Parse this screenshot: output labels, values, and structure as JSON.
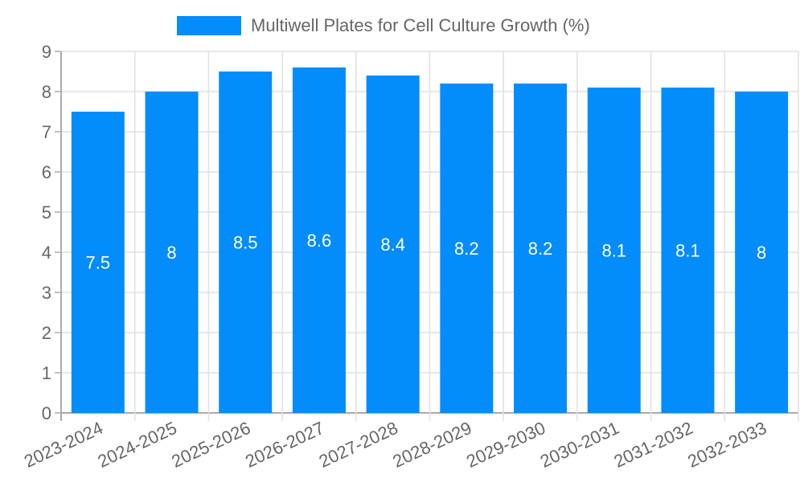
{
  "chart_data": {
    "type": "bar",
    "title": "",
    "legend": [
      {
        "label": "Multiwell Plates for Cell Culture Growth (%)",
        "color": "#038cfc"
      }
    ],
    "legend_position": "top",
    "categories": [
      "2023-2024",
      "2024-2025",
      "2025-2026",
      "2026-2027",
      "2027-2028",
      "2028-2029",
      "2029-2030",
      "2030-2031",
      "2031-2032",
      "2032-2033"
    ],
    "series": [
      {
        "name": "Multiwell Plates for Cell Culture Growth (%)",
        "values": [
          7.5,
          8,
          8.5,
          8.6,
          8.4,
          8.2,
          8.2,
          8.1,
          8.1,
          8
        ],
        "color": "#038cfc"
      }
    ],
    "data_labels": [
      "7.5",
      "8",
      "8.5",
      "8.6",
      "8.4",
      "8.2",
      "8.2",
      "8.1",
      "8.1",
      "8"
    ],
    "xlabel": "",
    "ylabel": "",
    "ylim": [
      0,
      9
    ],
    "yticks": [
      0,
      1,
      2,
      3,
      4,
      5,
      6,
      7,
      8,
      9
    ],
    "grid": true
  }
}
